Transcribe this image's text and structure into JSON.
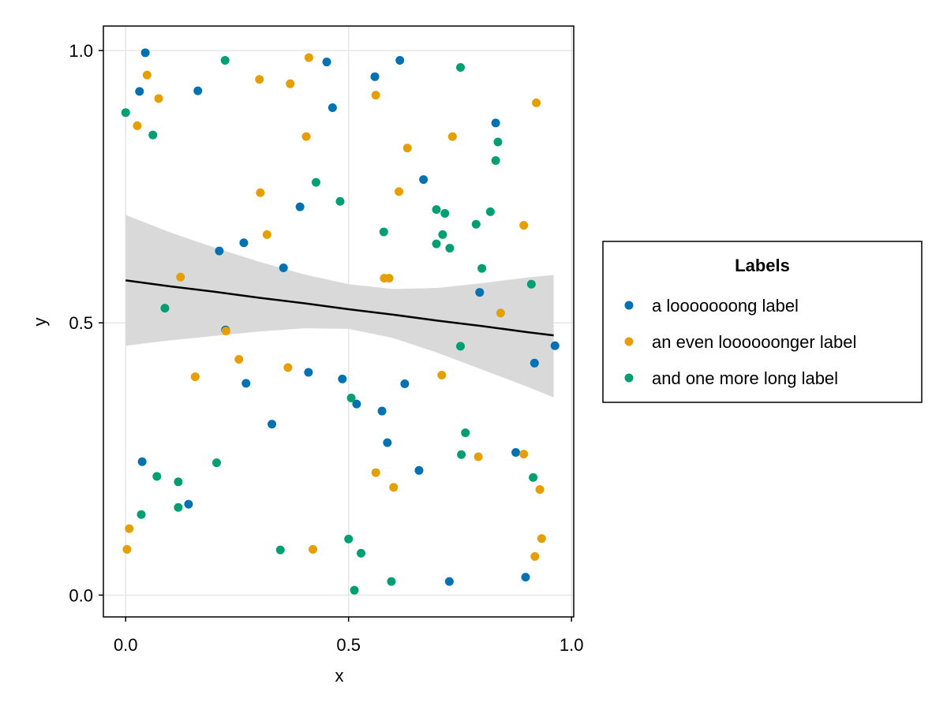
{
  "chart_data": {
    "type": "scatter",
    "title": "",
    "xlabel": "x",
    "ylabel": "y",
    "xlim": [
      -0.05,
      1.005
    ],
    "ylim": [
      -0.04,
      1.045
    ],
    "xticks": [
      "0.0",
      "0.5",
      "1.0"
    ],
    "yticks": [
      "0.0",
      "0.5",
      "1.0"
    ],
    "xtick_values": [
      0.0,
      0.5,
      1.0
    ],
    "ytick_values": [
      0.0,
      0.5,
      1.0
    ],
    "grid": true,
    "legend": {
      "title": "Labels",
      "placement": "right"
    },
    "series": [
      {
        "name": "a looooooong label",
        "color": "#0072B2",
        "x": [
          0.044,
          0.031,
          0.162,
          0.451,
          0.464,
          0.559,
          0.615,
          0.83,
          0.668,
          0.391,
          0.21,
          0.265,
          0.354,
          0.794,
          0.224,
          0.963,
          0.917,
          0.41,
          0.486,
          0.27,
          0.626,
          0.575,
          0.518,
          0.328,
          0.587,
          0.875,
          0.658,
          0.037,
          0.141,
          0.897,
          0.726
        ],
        "y": [
          0.996,
          0.925,
          0.926,
          0.979,
          0.895,
          0.952,
          0.982,
          0.867,
          0.763,
          0.713,
          0.632,
          0.647,
          0.601,
          0.556,
          0.487,
          0.458,
          0.426,
          0.409,
          0.397,
          0.389,
          0.388,
          0.338,
          0.351,
          0.314,
          0.28,
          0.262,
          0.229,
          0.245,
          0.167,
          0.033,
          0.025
        ]
      },
      {
        "name": "an even loooooonger label",
        "color": "#E69F00",
        "x": [
          0.411,
          0.048,
          0.3,
          0.369,
          0.074,
          0.561,
          0.921,
          0.026,
          0.405,
          0.632,
          0.733,
          0.302,
          0.613,
          0.317,
          0.893,
          0.123,
          0.58,
          0.591,
          0.841,
          0.225,
          0.254,
          0.364,
          0.709,
          0.156,
          0.893,
          0.791,
          0.561,
          0.601,
          0.929,
          0.008,
          0.003,
          0.933,
          0.42,
          0.918
        ],
        "y": [
          0.987,
          0.955,
          0.947,
          0.939,
          0.912,
          0.918,
          0.904,
          0.862,
          0.842,
          0.821,
          0.842,
          0.739,
          0.741,
          0.662,
          0.679,
          0.584,
          0.582,
          0.582,
          0.518,
          0.485,
          0.433,
          0.418,
          0.404,
          0.401,
          0.259,
          0.254,
          0.225,
          0.198,
          0.194,
          0.122,
          0.084,
          0.104,
          0.084,
          0.071
        ]
      },
      {
        "name": "and one more long label",
        "color": "#009E73",
        "x": [
          0.0,
          0.223,
          0.751,
          0.061,
          0.835,
          0.83,
          0.427,
          0.481,
          0.697,
          0.716,
          0.818,
          0.786,
          0.579,
          0.711,
          0.697,
          0.727,
          0.799,
          0.088,
          0.91,
          0.751,
          0.506,
          0.762,
          0.753,
          0.204,
          0.07,
          0.118,
          0.914,
          0.035,
          0.118,
          0.347,
          0.5,
          0.528,
          0.513,
          0.596
        ],
        "y": [
          0.886,
          0.982,
          0.969,
          0.845,
          0.832,
          0.798,
          0.758,
          0.723,
          0.708,
          0.701,
          0.704,
          0.681,
          0.667,
          0.662,
          0.645,
          0.637,
          0.6,
          0.527,
          0.571,
          0.457,
          0.362,
          0.298,
          0.258,
          0.243,
          0.218,
          0.208,
          0.216,
          0.148,
          0.161,
          0.083,
          0.103,
          0.077,
          0.009,
          0.025
        ]
      }
    ],
    "regression": {
      "color": "#000000",
      "band_color": "#d9d9d9",
      "x": [
        0.0,
        0.1,
        0.2,
        0.3,
        0.4,
        0.5,
        0.6,
        0.7,
        0.8,
        0.9,
        0.96
      ],
      "y": [
        0.578,
        0.567,
        0.557,
        0.546,
        0.536,
        0.525,
        0.515,
        0.504,
        0.494,
        0.483,
        0.477
      ],
      "lower": [
        0.458,
        0.468,
        0.476,
        0.484,
        0.49,
        0.489,
        0.472,
        0.445,
        0.414,
        0.383,
        0.363
      ],
      "upper": [
        0.698,
        0.666,
        0.638,
        0.612,
        0.589,
        0.571,
        0.562,
        0.564,
        0.573,
        0.583,
        0.588
      ]
    }
  }
}
